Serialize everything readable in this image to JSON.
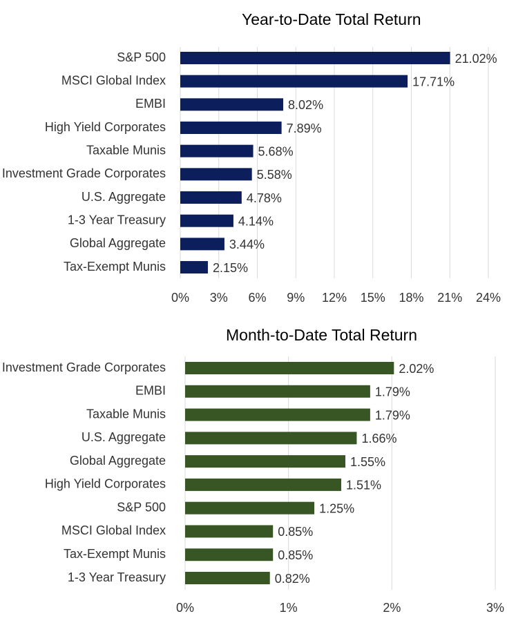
{
  "chart_data": [
    {
      "type": "bar",
      "orientation": "horizontal",
      "title": "Year-to-Date Total Return",
      "categories": [
        "S&P 500",
        "MSCI Global Index",
        "EMBI",
        "High Yield Corporates",
        "Taxable Munis",
        "Investment Grade Corporates",
        "U.S. Aggregate",
        "1-3 Year Treasury",
        "Global Aggregate",
        "Tax-Exempt Munis"
      ],
      "values": [
        21.02,
        17.71,
        8.02,
        7.89,
        5.68,
        5.58,
        4.78,
        4.14,
        3.44,
        2.15
      ],
      "data_labels": [
        "21.02%",
        "17.71%",
        "8.02%",
        "7.89%",
        "5.68%",
        "5.58%",
        "4.78%",
        "4.14%",
        "3.44%",
        "2.15%"
      ],
      "xlim": [
        0,
        24
      ],
      "ticks": [
        0,
        3,
        6,
        9,
        12,
        15,
        18,
        21,
        24
      ],
      "tick_labels": [
        "0%",
        "3%",
        "6%",
        "9%",
        "12%",
        "15%",
        "18%",
        "21%",
        "24%"
      ],
      "grid": true,
      "color": "#0c1f5c"
    },
    {
      "type": "bar",
      "orientation": "horizontal",
      "title": "Month-to-Date Total Return",
      "categories": [
        "Investment Grade Corporates",
        "EMBI",
        "Taxable Munis",
        "U.S. Aggregate",
        "Global Aggregate",
        "High Yield Corporates",
        "S&P 500",
        "MSCI Global Index",
        "Tax-Exempt Munis",
        "1-3 Year Treasury"
      ],
      "values": [
        2.02,
        1.79,
        1.79,
        1.66,
        1.55,
        1.51,
        1.25,
        0.85,
        0.85,
        0.82
      ],
      "data_labels": [
        "2.02%",
        "1.79%",
        "1.79%",
        "1.66%",
        "1.55%",
        "1.51%",
        "1.25%",
        "0.85%",
        "0.85%",
        "0.82%"
      ],
      "xlim": [
        0,
        3
      ],
      "ticks": [
        0,
        1,
        2,
        3
      ],
      "tick_labels": [
        "0%",
        "1%",
        "2%",
        "3%"
      ],
      "grid": true,
      "color": "#375623"
    }
  ]
}
